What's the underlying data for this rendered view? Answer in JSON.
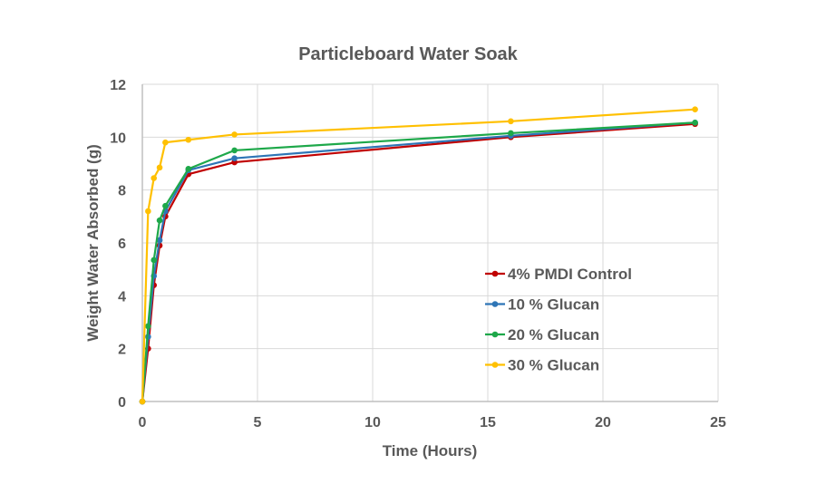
{
  "chart_data": {
    "type": "line",
    "title": "Particleboard Water Soak",
    "xlabel": "Time (Hours)",
    "ylabel": "Weight Water Absorbed (g)",
    "xlim": [
      0,
      25
    ],
    "ylim": [
      0,
      12
    ],
    "xticks": [
      0,
      5,
      10,
      15,
      20,
      25
    ],
    "yticks": [
      0,
      2,
      4,
      6,
      8,
      10,
      12
    ],
    "grid": true,
    "legend_position": "center-right",
    "x": [
      0,
      0.25,
      0.5,
      0.75,
      1,
      2,
      4,
      16,
      24
    ],
    "series": [
      {
        "name": "4% PMDI Control",
        "color": "#c00000",
        "values": [
          0,
          2.0,
          4.4,
          5.9,
          7.0,
          8.6,
          9.05,
          10.0,
          10.5
        ]
      },
      {
        "name": "10 % Glucan",
        "color": "#2e75b6",
        "values": [
          0,
          2.45,
          4.75,
          6.1,
          7.2,
          8.75,
          9.2,
          10.05,
          10.55
        ]
      },
      {
        "name": "20 % Glucan",
        "color": "#1ea84a",
        "values": [
          0,
          2.85,
          5.35,
          6.85,
          7.4,
          8.8,
          9.5,
          10.15,
          10.55
        ]
      },
      {
        "name": "30 % Glucan",
        "color": "#ffc000",
        "values": [
          0,
          7.2,
          8.45,
          8.85,
          9.8,
          9.9,
          10.1,
          10.6,
          11.05
        ]
      }
    ]
  }
}
